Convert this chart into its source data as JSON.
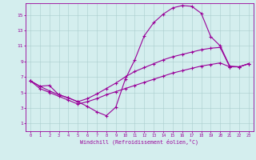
{
  "xlabel": "Windchill (Refroidissement éolien,°C)",
  "bg_color": "#d4eeee",
  "line_color": "#990099",
  "grid_color": "#aacccc",
  "x_ticks": [
    0,
    1,
    2,
    3,
    4,
    5,
    6,
    7,
    8,
    9,
    10,
    11,
    12,
    13,
    14,
    15,
    16,
    17,
    18,
    19,
    20,
    21,
    22,
    23
  ],
  "y_ticks": [
    1,
    3,
    5,
    7,
    9,
    11,
    13,
    15
  ],
  "xlim": [
    -0.5,
    23.5
  ],
  "ylim": [
    0.0,
    16.5
  ],
  "series": [
    {
      "x": [
        0,
        1,
        2,
        3,
        4,
        5,
        6,
        7,
        8,
        9,
        10,
        11,
        12,
        13,
        14,
        15,
        16,
        17,
        18,
        19,
        20,
        21,
        22,
        23
      ],
      "y": [
        6.5,
        5.8,
        5.9,
        4.7,
        4.3,
        3.8,
        3.2,
        2.5,
        2.0,
        3.1,
        6.7,
        9.2,
        12.3,
        14.0,
        15.1,
        15.9,
        16.2,
        16.1,
        15.2,
        12.2,
        11.0,
        8.4,
        8.3,
        8.7
      ]
    },
    {
      "x": [
        0,
        1,
        2,
        3,
        4,
        5,
        6,
        7,
        8,
        9,
        10,
        11,
        12,
        13,
        14,
        15,
        16,
        17,
        18,
        19,
        20,
        21,
        22,
        23
      ],
      "y": [
        6.5,
        5.8,
        5.2,
        4.7,
        4.3,
        3.8,
        4.2,
        4.8,
        5.5,
        6.2,
        7.0,
        7.7,
        8.2,
        8.7,
        9.2,
        9.6,
        9.9,
        10.2,
        10.5,
        10.7,
        10.8,
        8.3,
        8.3,
        8.7
      ]
    },
    {
      "x": [
        0,
        1,
        2,
        3,
        4,
        5,
        6,
        7,
        8,
        9,
        10,
        11,
        12,
        13,
        14,
        15,
        16,
        17,
        18,
        19,
        20,
        21,
        22,
        23
      ],
      "y": [
        6.5,
        5.5,
        5.0,
        4.5,
        4.0,
        3.5,
        3.8,
        4.2,
        4.7,
        5.1,
        5.5,
        5.9,
        6.3,
        6.7,
        7.1,
        7.5,
        7.8,
        8.1,
        8.4,
        8.6,
        8.8,
        8.3,
        8.3,
        8.7
      ]
    }
  ]
}
